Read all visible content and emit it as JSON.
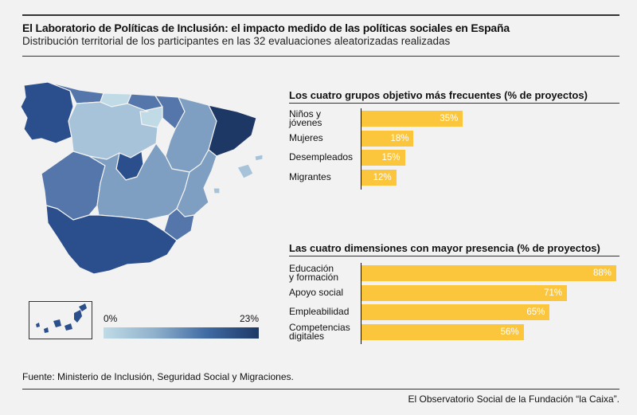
{
  "header": {
    "title": "El Laboratorio de Políticas de Inclusión: el impacto medido de las políticas sociales en España",
    "subtitle": "Distribución territorial de los participantes en las 32 evaluaciones aleatorizadas realizadas"
  },
  "legend": {
    "min_label": "0%",
    "max_label": "23%",
    "colors": [
      "#c0dbe6",
      "#8fb0cc",
      "#3f6aa3",
      "#1e3866"
    ]
  },
  "map_colors": {
    "very_dark": "#1e3866",
    "dark": "#2b4e8c",
    "medium": "#5476aa",
    "mid_light": "#7e9fc2",
    "light": "#a6c3d9",
    "very_light": "#c0dbe6"
  },
  "footer": {
    "source": "Fuente: Ministerio de Inclusión, Seguridad Social y Migraciones.",
    "credit": "El Observatorio Social de la Fundación “la Caixa”."
  },
  "chart_data": [
    {
      "type": "bar",
      "title": "Los cuatro grupos objetivo más frecuentes (% de proyectos)",
      "categories": [
        "Niños y jóvenes",
        "Mujeres",
        "Desempleados",
        "Migrantes"
      ],
      "category_lines": [
        [
          "Niños y",
          "jóvenes"
        ],
        [
          "Mujeres"
        ],
        [
          "Desempleados"
        ],
        [
          "Migrantes"
        ]
      ],
      "values": [
        35,
        18,
        15,
        12
      ],
      "value_labels": [
        "35%",
        "18%",
        "15%",
        "12%"
      ],
      "color": "#fcc63c"
    },
    {
      "type": "bar",
      "title": "Las cuatro dimensiones con mayor presencia (% de proyectos)",
      "categories": [
        "Educación y formación",
        "Apoyo social",
        "Empleabilidad",
        "Competencias digitales"
      ],
      "category_lines": [
        [
          "Educación",
          "y formación"
        ],
        [
          "Apoyo social"
        ],
        [
          "Empleabilidad"
        ],
        [
          "Competencias",
          "digitales"
        ]
      ],
      "values": [
        88,
        71,
        65,
        56
      ],
      "value_labels": [
        "88%",
        "71%",
        "65%",
        "56%"
      ],
      "color": "#fcc63c"
    }
  ]
}
